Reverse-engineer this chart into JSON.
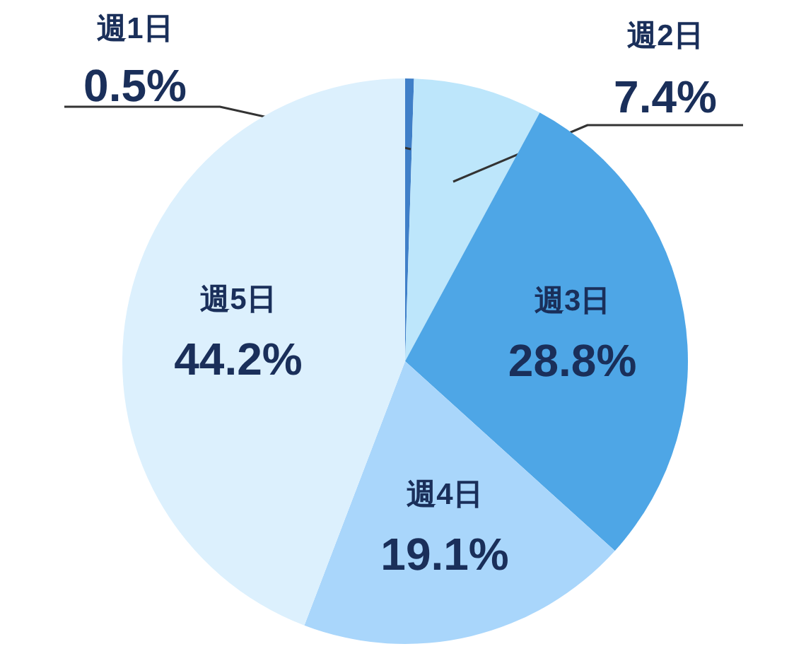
{
  "chart_data": {
    "type": "pie",
    "categories": [
      "週1日",
      "週2日",
      "週3日",
      "週4日",
      "週5日"
    ],
    "values": [
      0.5,
      7.4,
      28.8,
      19.1,
      44.2
    ],
    "colors": [
      "#3f7fc8",
      "#bde6fb",
      "#4ea6e6",
      "#a9d6fb",
      "#dcf0fd"
    ],
    "value_labels": [
      "0.5%",
      "7.4%",
      "28.8%",
      "19.1%",
      "44.2%"
    ]
  }
}
